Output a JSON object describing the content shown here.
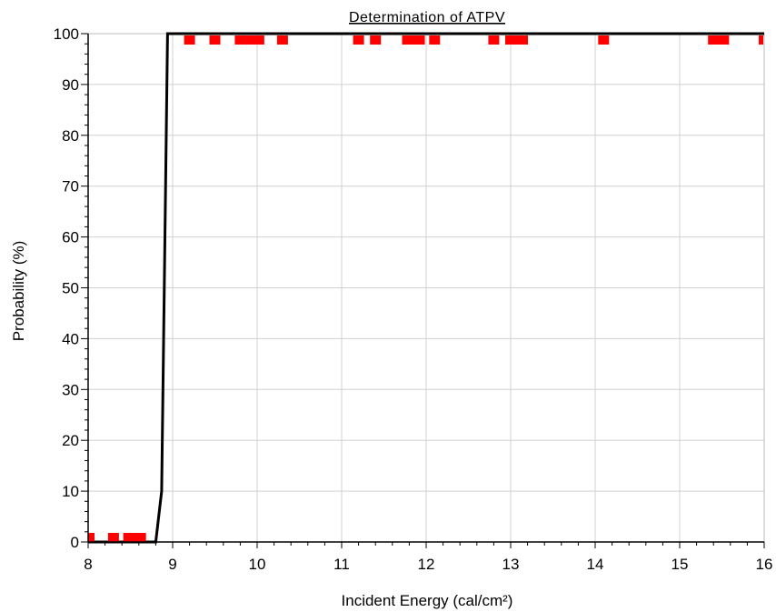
{
  "chart_data": {
    "type": "scatter",
    "title": "Determination of ATPV",
    "xlabel": "Incident Energy (cal/cm²)",
    "ylabel": "Probability (%)",
    "xlim": [
      8,
      16
    ],
    "ylim": [
      0,
      100
    ],
    "x_ticks": [
      8,
      9,
      10,
      11,
      12,
      13,
      14,
      15,
      16
    ],
    "y_ticks": [
      0,
      10,
      20,
      30,
      40,
      50,
      60,
      70,
      80,
      90,
      100
    ],
    "grid": true,
    "colors": {
      "curve": "#000000",
      "markers": "#ff0000",
      "grid": "#d0d0d0"
    },
    "series": [
      {
        "kind": "line",
        "x": [
          8.0,
          8.8,
          8.87,
          8.94,
          9.2,
          16.0
        ],
        "y": [
          0,
          0,
          10,
          100,
          100,
          100
        ]
      },
      {
        "kind": "markers",
        "points": [
          {
            "x": 8.02,
            "y": 0
          },
          {
            "x": 8.3,
            "y": 0
          },
          {
            "x": 8.48,
            "y": 0
          },
          {
            "x": 8.56,
            "y": 0
          },
          {
            "x": 8.62,
            "y": 0
          },
          {
            "x": 9.2,
            "y": 100
          },
          {
            "x": 9.5,
            "y": 100
          },
          {
            "x": 9.8,
            "y": 100
          },
          {
            "x": 9.88,
            "y": 100
          },
          {
            "x": 9.96,
            "y": 100
          },
          {
            "x": 10.02,
            "y": 100
          },
          {
            "x": 10.3,
            "y": 100
          },
          {
            "x": 11.2,
            "y": 100
          },
          {
            "x": 11.4,
            "y": 100
          },
          {
            "x": 11.78,
            "y": 100
          },
          {
            "x": 11.86,
            "y": 100
          },
          {
            "x": 11.92,
            "y": 100
          },
          {
            "x": 12.1,
            "y": 100
          },
          {
            "x": 12.8,
            "y": 100
          },
          {
            "x": 13.0,
            "y": 100
          },
          {
            "x": 13.08,
            "y": 100
          },
          {
            "x": 13.14,
            "y": 100
          },
          {
            "x": 14.1,
            "y": 100
          },
          {
            "x": 15.4,
            "y": 100
          },
          {
            "x": 15.48,
            "y": 100
          },
          {
            "x": 15.52,
            "y": 100
          },
          {
            "x": 16.0,
            "y": 100
          }
        ]
      }
    ]
  }
}
